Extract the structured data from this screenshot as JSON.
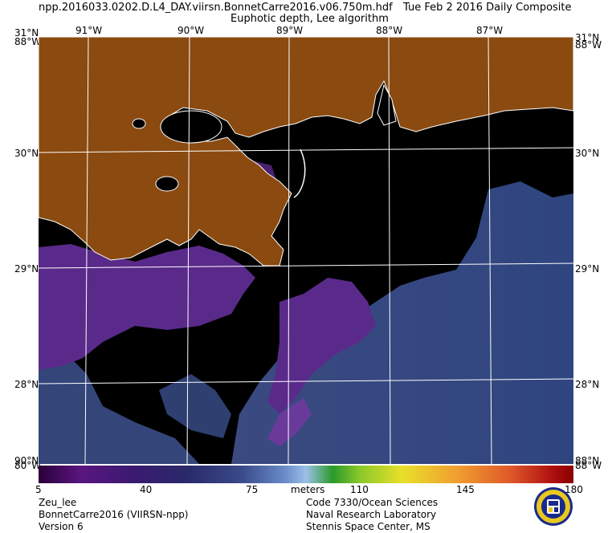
{
  "header": {
    "filename": "npp.2016033.0202.D.L4_DAY.viirsn.BonnetCarre2016.v06.750m.hdf",
    "date": "Tue Feb  2 2016 Daily Composite",
    "product": "Euphotic depth, Lee algorithm"
  },
  "map": {
    "lon_labels_top": [
      "91°W",
      "90°W",
      "89°W",
      "88°W",
      "87°W"
    ],
    "lat_labels": [
      "30°N",
      "29°N",
      "28°N"
    ],
    "corner_labels": {
      "top_left_lat": "31°N",
      "top_left_lon": "88°W",
      "top_right_lat": "31°N",
      "top_right_lon": "88°W",
      "bottom_left_lat": "90°N",
      "bottom_left_lon": "80°W",
      "bottom_right_lat": "88°N",
      "bottom_right_lon": "88°W"
    },
    "colors": {
      "land": "#8a4a10",
      "cloud": "#000000",
      "coast": "#ffffff",
      "water_deep": "#34457a",
      "water_shallow": "#5a2a8a"
    }
  },
  "colorbar": {
    "ticks": [
      "5",
      "40",
      "75",
      "110",
      "145",
      "180"
    ],
    "unit": "meters"
  },
  "footer": {
    "left": [
      "Zeu_lee",
      "BonnetCarre2016 (VIIRSN-npp)",
      "Version 6"
    ],
    "right": [
      "Code 7330/Ocean Sciences",
      "Naval Research Laboratory",
      "Stennis Space Center, MS"
    ]
  }
}
